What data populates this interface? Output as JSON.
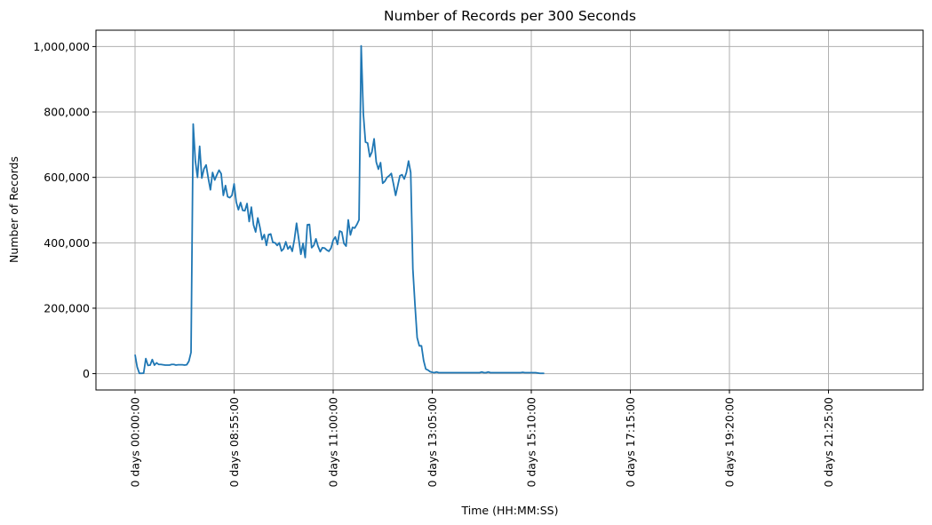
{
  "chart_data": {
    "type": "line",
    "title": "Number of Records per 300 Seconds",
    "xlabel": "Time (HH:MM:SS)",
    "ylabel": "Number of Records",
    "grid": true,
    "legend": "none",
    "line_color": "#1f77b4",
    "grid_color": "#b0b0b0",
    "xlim": [
      -0.4,
      1.11
    ],
    "ylim": [
      -50000,
      1050000
    ],
    "x_unit": "days",
    "x_ticks": [
      {
        "value": 0.0,
        "label": "0 days 00:00:00"
      },
      {
        "value": 0.15972,
        "label": "0 days 08:55:00"
      },
      {
        "value": 0.31944,
        "label": "0 days 11:00:00"
      },
      {
        "value": 0.47917,
        "label": "0 days 13:05:00"
      },
      {
        "value": 0.63889,
        "label": "0 days 15:10:00"
      },
      {
        "value": 0.79861,
        "label": "0 days 17:15:00"
      },
      {
        "value": 0.95833,
        "label": "0 days 19:20:00"
      },
      {
        "value": 1.11806,
        "label": "0 days 21:25:00"
      }
    ],
    "y_ticks": [
      {
        "value": 0,
        "label": "0"
      },
      {
        "value": 200000,
        "label": "200,000"
      },
      {
        "value": 400000,
        "label": "400,000"
      },
      {
        "value": 600000,
        "label": "600,000"
      },
      {
        "value": 800000,
        "label": "800,000"
      },
      {
        "value": 1000000,
        "label": "1,000,000"
      }
    ],
    "series": [
      {
        "x_start": 0.0,
        "x_step": 0.0034722,
        "values": [
          58000,
          20000,
          1000,
          1000,
          1500,
          46000,
          25000,
          26000,
          43000,
          26000,
          33000,
          28000,
          28000,
          27000,
          26000,
          26000,
          26000,
          28000,
          28000,
          26000,
          27000,
          27000,
          27000,
          26000,
          27000,
          38000,
          65000,
          763000,
          650000,
          600000,
          695000,
          598000,
          626000,
          638000,
          598000,
          562000,
          615000,
          592000,
          608000,
          622000,
          611000,
          545000,
          575000,
          541000,
          538000,
          545000,
          580000,
          524000,
          501000,
          523000,
          499000,
          498000,
          520000,
          465000,
          509000,
          455000,
          433000,
          476000,
          447000,
          410000,
          425000,
          392000,
          425000,
          427000,
          401000,
          400000,
          392000,
          400000,
          375000,
          382000,
          403000,
          381000,
          390000,
          374000,
          410000,
          460000,
          412000,
          365000,
          398000,
          355000,
          455000,
          456000,
          385000,
          392000,
          412000,
          389000,
          373000,
          385000,
          384000,
          378000,
          374000,
          384000,
          408000,
          418000,
          395000,
          436000,
          433000,
          398000,
          390000,
          470000,
          424000,
          447000,
          445000,
          456000,
          470000,
          1002000,
          795000,
          708000,
          705000,
          663000,
          678000,
          718000,
          647000,
          625000,
          645000,
          582000,
          588000,
          600000,
          605000,
          612000,
          580000,
          545000,
          575000,
          605000,
          608000,
          595000,
          615000,
          650000,
          615000,
          320000,
          210000,
          110000,
          85000,
          85000,
          40000,
          14000,
          11000,
          6000,
          4000,
          3000,
          5000,
          3000,
          3000,
          3000,
          3000,
          3000,
          3000,
          3000,
          3000,
          3000,
          3000,
          3000,
          3000,
          3000,
          3000,
          3000,
          3000,
          3000,
          3000,
          3000,
          3000,
          5000,
          3000,
          3000,
          5000,
          3000,
          3000,
          3000,
          3000,
          3000,
          3000,
          3000,
          3000,
          3000,
          3000,
          3000,
          3000,
          3000,
          3000,
          3000,
          4000,
          3000,
          3000,
          3000,
          3000,
          3000,
          3000,
          2000,
          1000,
          1000,
          1000
        ]
      }
    ]
  }
}
